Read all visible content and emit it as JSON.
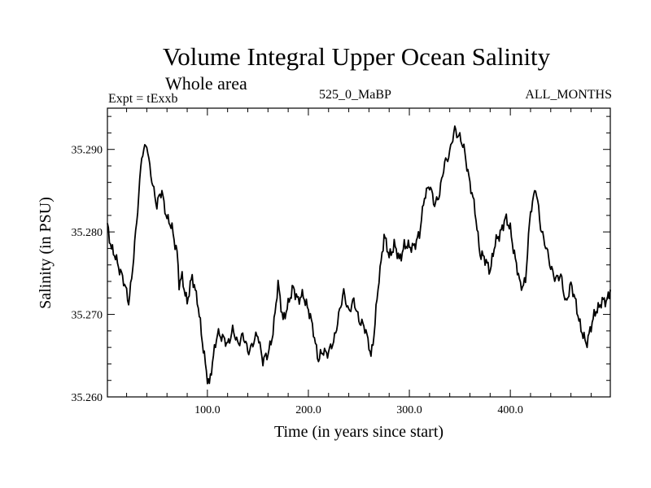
{
  "chart_data": {
    "type": "line",
    "title": "Volume Integral Upper Ocean Salinity",
    "subtitle": "Whole area",
    "experiment_label": "Expt = tExxb",
    "run_label": "525_0_MaBP",
    "months_label": "ALL_MONTHS",
    "xlabel": "Time (in years since start)",
    "ylabel": "Salinity (in PSU)",
    "xlim": [
      1,
      499
    ],
    "ylim": [
      35.26,
      35.295
    ],
    "x_ticks": [
      100,
      200,
      300,
      400
    ],
    "x_tick_labels": [
      "100.0",
      "200.0",
      "300.0",
      "400.0"
    ],
    "y_ticks": [
      35.26,
      35.27,
      35.28,
      35.29
    ],
    "y_tick_labels": [
      "35.260",
      "35.270",
      "35.280",
      "35.290"
    ],
    "grid": false,
    "series": [
      {
        "name": "Salinity",
        "color": "#000000",
        "x": [
          1,
          5,
          10,
          15,
          20,
          22,
          25,
          30,
          35,
          40,
          42,
          45,
          50,
          53,
          55,
          60,
          65,
          70,
          72,
          75,
          80,
          85,
          90,
          95,
          100,
          102,
          105,
          110,
          115,
          120,
          125,
          130,
          135,
          140,
          145,
          150,
          155,
          160,
          165,
          170,
          175,
          180,
          185,
          190,
          195,
          200,
          205,
          210,
          215,
          220,
          225,
          230,
          235,
          240,
          245,
          250,
          255,
          260,
          262,
          265,
          270,
          275,
          280,
          285,
          290,
          295,
          300,
          305,
          310,
          315,
          320,
          325,
          330,
          335,
          340,
          345,
          350,
          355,
          360,
          365,
          370,
          375,
          380,
          385,
          390,
          395,
          400,
          405,
          410,
          415,
          420,
          425,
          430,
          435,
          440,
          445,
          450,
          455,
          460,
          465,
          470,
          475,
          480,
          485,
          490,
          495,
          499
        ],
        "values": [
          35.281,
          35.278,
          35.2765,
          35.275,
          35.2725,
          35.2715,
          35.2745,
          35.281,
          35.2895,
          35.2905,
          35.2885,
          35.2865,
          35.283,
          35.2845,
          35.285,
          35.2815,
          35.2805,
          35.2775,
          35.2735,
          35.2745,
          35.2715,
          35.2745,
          35.272,
          35.2665,
          35.2625,
          35.2615,
          35.264,
          35.268,
          35.267,
          35.2665,
          35.268,
          35.2665,
          35.2675,
          35.2655,
          35.2665,
          35.2675,
          35.2645,
          35.265,
          35.268,
          35.2735,
          35.2695,
          35.271,
          35.2735,
          35.2715,
          35.2725,
          35.2705,
          35.268,
          35.2645,
          35.2655,
          35.2655,
          35.2665,
          35.27,
          35.2725,
          35.2705,
          35.2715,
          35.2695,
          35.2685,
          35.2665,
          35.265,
          35.2675,
          35.2745,
          35.2795,
          35.277,
          35.2785,
          35.2765,
          35.2785,
          35.278,
          35.2785,
          35.2795,
          35.2845,
          35.2855,
          35.2835,
          35.2845,
          35.2885,
          35.2895,
          35.2925,
          35.2915,
          35.2895,
          35.286,
          35.2825,
          35.2775,
          35.2765,
          35.2755,
          35.2785,
          35.28,
          35.2815,
          35.2805,
          35.2765,
          35.2735,
          35.274,
          35.2825,
          35.2855,
          35.2805,
          35.2785,
          35.2755,
          35.2745,
          35.2745,
          35.2715,
          35.2735,
          35.2715,
          35.268,
          35.2665,
          35.2685,
          35.2705,
          35.2715,
          35.2715,
          35.273
        ]
      }
    ]
  }
}
